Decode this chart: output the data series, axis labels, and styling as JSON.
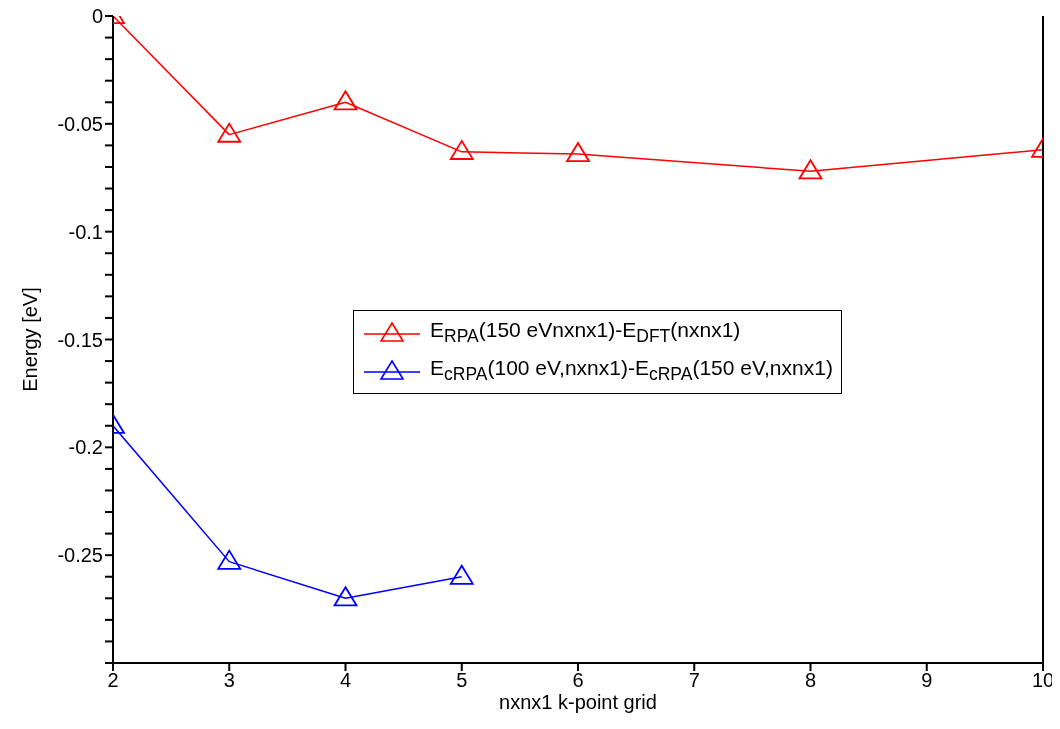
{
  "chart_data": {
    "type": "line",
    "xlabel": "nxnx1 k-point grid",
    "ylabel": "Energy [eV]",
    "x": [
      2,
      3,
      4,
      5,
      6,
      8,
      10
    ],
    "series": [
      {
        "name": "E$_{RPA}$(150 eVnxnx1)-E$_{DFT}$(nxnx1)",
        "color": "#ff0000",
        "values": [
          0,
          -0.055,
          -0.04,
          -0.063,
          -0.064,
          -0.072,
          -0.062
        ]
      },
      {
        "name": "E$_{cRPA}$(100 eV,nxnx1)-E$_{cRPA}$(150 eV,nxnx1)",
        "color": "#0000ff",
        "values": [
          -0.19,
          -0.253,
          -0.27,
          -0.26,
          null,
          null,
          null
        ]
      }
    ],
    "xlim": [
      2,
      10
    ],
    "xticks": [
      2,
      3,
      4,
      5,
      6,
      7,
      8,
      9,
      10
    ],
    "ylim": [
      -0.3,
      0
    ],
    "yticks": [
      0,
      {
        "value": -0.01,
        "label": null
      },
      {
        "value": -0.02,
        "label": null
      },
      {
        "value": -0.03,
        "label": null
      },
      {
        "value": -0.04,
        "label": null
      },
      -0.05,
      {
        "value": -0.06,
        "label": null
      },
      {
        "value": -0.07,
        "label": null
      },
      {
        "value": -0.08,
        "label": null
      },
      {
        "value": -0.09,
        "label": null
      },
      -0.1,
      {
        "value": -0.11,
        "label": null
      },
      {
        "value": -0.12,
        "label": null
      },
      {
        "value": -0.13,
        "label": null
      },
      {
        "value": -0.14,
        "label": null
      },
      -0.15,
      {
        "value": -0.16,
        "label": null
      },
      {
        "value": -0.17,
        "label": null
      },
      {
        "value": -0.18,
        "label": null
      },
      {
        "value": -0.19,
        "label": null
      },
      -0.2,
      {
        "value": -0.21,
        "label": null
      },
      {
        "value": -0.22,
        "label": null
      },
      {
        "value": -0.23,
        "label": null
      },
      {
        "value": -0.24,
        "label": null
      },
      -0.25,
      {
        "value": -0.26,
        "label": null
      },
      {
        "value": -0.27,
        "label": null
      },
      {
        "value": -0.28,
        "label": null
      },
      {
        "value": -0.29,
        "label": null
      },
      {
        "value": -0.3,
        "label": null
      }
    ],
    "grid": false,
    "legend": "center",
    "marker": "triangle",
    "line_style": "solid"
  }
}
